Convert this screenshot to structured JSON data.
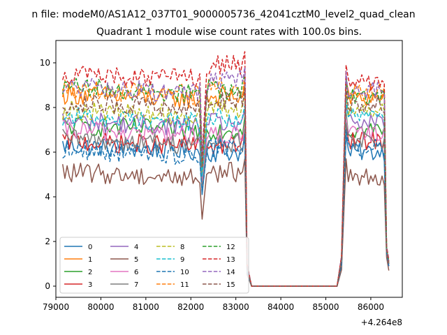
{
  "figure": {
    "suptitle": "n file: modeM0/AS1A12_037T01_9000005736_42041cztM0_level2_quad_clean",
    "title": "Quadrant 1 module wise count rates with 100.0s bins."
  },
  "chart_data": {
    "type": "line",
    "title": "Quadrant 1 module wise count rates with 100.0s bins.",
    "xlabel": "",
    "ylabel": "",
    "x_offset_label": "+4.264e8",
    "xlim": [
      79000,
      86700
    ],
    "ylim": [
      -0.5,
      11
    ],
    "xticks": [
      79000,
      80000,
      81000,
      82000,
      83000,
      84000,
      85000,
      86000
    ],
    "yticks": [
      0,
      2,
      4,
      6,
      8,
      10
    ],
    "grid": false,
    "legend": {
      "placement": "lower-left",
      "columns": 4
    },
    "segments": [
      {
        "x_start": 79150,
        "x_end": 82200,
        "step": 50
      },
      {
        "x_start": 82250,
        "x_end": 83250,
        "step": 50
      },
      {
        "x_start": 83250,
        "x_end": 85250,
        "step": 100
      },
      {
        "x_start": 85350,
        "x_end": 86400,
        "step": 50
      }
    ],
    "series": [
      {
        "name": "0",
        "color": "#1f77b4",
        "dash": "solid",
        "level1": 6.3,
        "level2": 6.0,
        "level3": 6.0,
        "dip": 4.1,
        "end": 1.0
      },
      {
        "name": "1",
        "color": "#ff7f0e",
        "dash": "solid",
        "level1": 8.6,
        "level2": 8.5,
        "level3": 8.4,
        "dip": 5.2,
        "end": 1.1
      },
      {
        "name": "2",
        "color": "#2ca02c",
        "dash": "solid",
        "level1": 7.2,
        "level2": 7.0,
        "level3": 7.0,
        "dip": 4.6,
        "end": 1.0
      },
      {
        "name": "3",
        "color": "#d62728",
        "dash": "solid",
        "level1": 6.5,
        "level2": 6.3,
        "level3": 6.5,
        "dip": 4.4,
        "end": 1.0
      },
      {
        "name": "4",
        "color": "#9467bd",
        "dash": "solid",
        "level1": 7.4,
        "level2": 7.3,
        "level3": 7.3,
        "dip": 4.8,
        "end": 0.9
      },
      {
        "name": "5",
        "color": "#8c564b",
        "dash": "solid",
        "level1": 5.1,
        "level2": 5.1,
        "level3": 4.9,
        "dip": 3.0,
        "end": 0.7
      },
      {
        "name": "6",
        "color": "#e377c2",
        "dash": "solid",
        "level1": 7.0,
        "level2": 6.7,
        "level3": 6.8,
        "dip": 4.5,
        "end": 0.9
      },
      {
        "name": "7",
        "color": "#7f7f7f",
        "dash": "solid",
        "level1": 6.6,
        "level2": 6.4,
        "level3": 6.5,
        "dip": 4.3,
        "end": 0.9
      },
      {
        "name": "8",
        "color": "#bcbd22",
        "dash": "dashed",
        "level1": 7.9,
        "level2": 7.9,
        "level3": 7.9,
        "dip": 5.0,
        "end": 1.0
      },
      {
        "name": "9",
        "color": "#17becf",
        "dash": "dashed",
        "level1": 7.6,
        "level2": 7.5,
        "level3": 7.6,
        "dip": 4.9,
        "end": 1.0
      },
      {
        "name": "10",
        "color": "#1f77b4",
        "dash": "dashed",
        "level1": 6.1,
        "level2": 6.2,
        "level3": 6.2,
        "dip": 4.2,
        "end": 0.9
      },
      {
        "name": "11",
        "color": "#ff7f0e",
        "dash": "dashed",
        "level1": 8.8,
        "level2": 8.9,
        "level3": 8.7,
        "dip": 5.4,
        "end": 1.1
      },
      {
        "name": "12",
        "color": "#2ca02c",
        "dash": "dashed",
        "level1": 8.9,
        "level2": 8.8,
        "level3": 8.5,
        "dip": 5.5,
        "end": 1.1
      },
      {
        "name": "13",
        "color": "#d62728",
        "dash": "dashed",
        "level1": 9.5,
        "level2": 9.9,
        "level3": 9.1,
        "dip": 5.8,
        "end": 1.2
      },
      {
        "name": "14",
        "color": "#9467bd",
        "dash": "dashed",
        "level1": 8.9,
        "level2": 9.2,
        "level3": 8.8,
        "dip": 5.6,
        "end": 1.1
      },
      {
        "name": "15",
        "color": "#8c564b",
        "dash": "dashed",
        "level1": 8.2,
        "level2": 8.3,
        "level3": 8.1,
        "dip": 5.3,
        "end": 1.0
      }
    ]
  }
}
